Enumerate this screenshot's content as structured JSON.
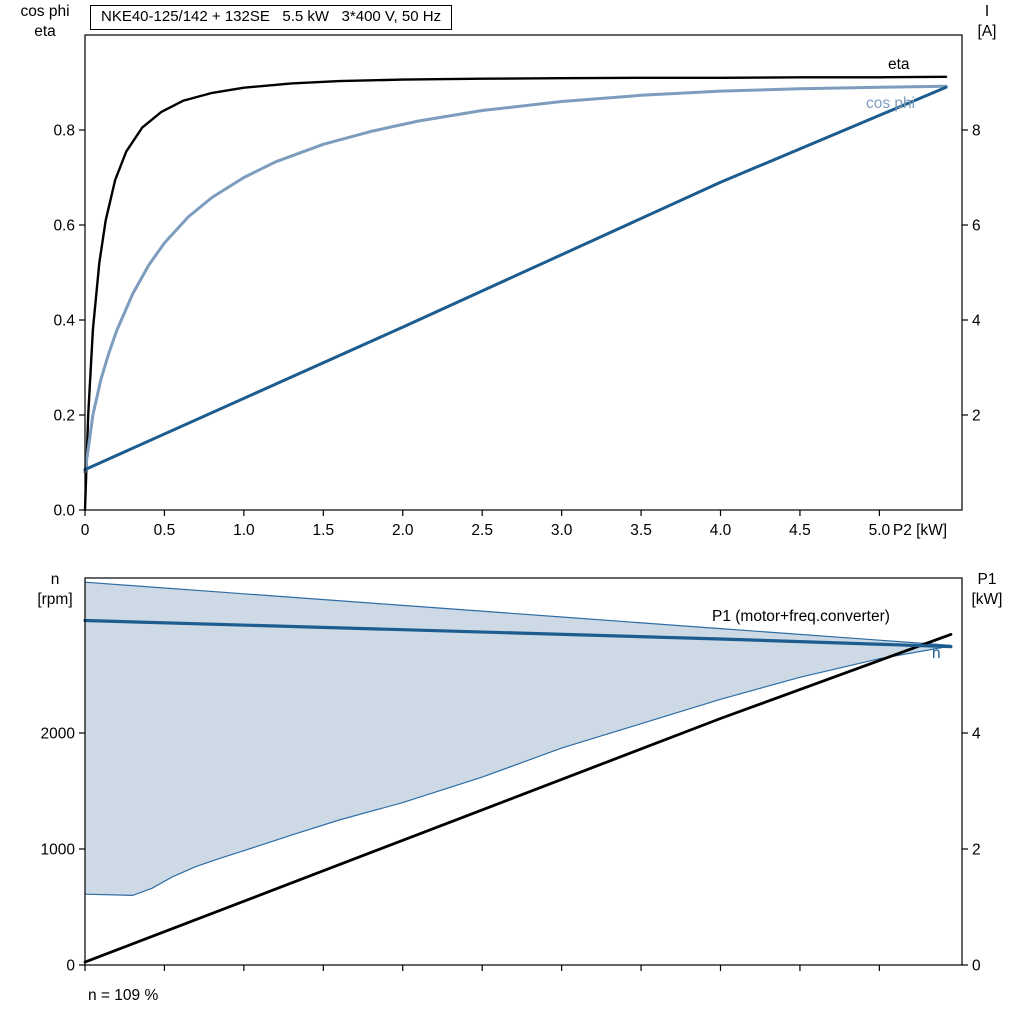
{
  "chart_data": [
    {
      "id": "motor-electrical-curves",
      "type": "line",
      "title": "NKE40-125/142 + 132SE   5.5 kW   3*400 V, 50 Hz",
      "x_axis": {
        "label": "P2 [kW]",
        "min": 0,
        "max": 5.52,
        "ticks": [
          0,
          0.5,
          1,
          1.5,
          2,
          2.5,
          3,
          3.5,
          4,
          4.5,
          5
        ],
        "tick_labels": [
          "0",
          "0.5",
          "1.0",
          "1.5",
          "2.0",
          "2.5",
          "3.0",
          "3.5",
          "4.0",
          "4.5",
          "5.0"
        ]
      },
      "y_left": {
        "label_lines": [
          "cos phi",
          "eta"
        ],
        "min": 0,
        "max": 1.0,
        "ticks": [
          0,
          0.2,
          0.4,
          0.6,
          0.8
        ],
        "tick_labels": [
          "0.0",
          "0.2",
          "0.4",
          "0.6",
          "0.8"
        ]
      },
      "y_right": {
        "label_lines": [
          "I",
          "[A]"
        ],
        "min": 0,
        "max": 10,
        "ticks": [
          2,
          4,
          6,
          8
        ],
        "tick_labels": [
          "2",
          "4",
          "6",
          "8"
        ]
      },
      "grid": false,
      "legend_position": "labels-at-line-ends",
      "series": [
        {
          "name": "eta",
          "label": "eta",
          "axis": "left",
          "color": "#000000",
          "width": 2.4,
          "points": [
            [
              0,
              0
            ],
            [
              0.02,
              0.2
            ],
            [
              0.05,
              0.38
            ],
            [
              0.09,
              0.52
            ],
            [
              0.13,
              0.61
            ],
            [
              0.19,
              0.695
            ],
            [
              0.26,
              0.755
            ],
            [
              0.36,
              0.805
            ],
            [
              0.48,
              0.838
            ],
            [
              0.62,
              0.862
            ],
            [
              0.8,
              0.878
            ],
            [
              1.0,
              0.889
            ],
            [
              1.3,
              0.898
            ],
            [
              1.6,
              0.903
            ],
            [
              2.0,
              0.906
            ],
            [
              2.5,
              0.908
            ],
            [
              3.0,
              0.909
            ],
            [
              3.5,
              0.91
            ],
            [
              4.0,
              0.91
            ],
            [
              4.5,
              0.911
            ],
            [
              5.0,
              0.911
            ],
            [
              5.42,
              0.912
            ]
          ]
        },
        {
          "name": "cos phi",
          "label": "cos phi",
          "axis": "left",
          "color": "#7d9dbe",
          "width": 3,
          "points": [
            [
              0,
              0.08
            ],
            [
              0.05,
              0.2
            ],
            [
              0.1,
              0.275
            ],
            [
              0.15,
              0.33
            ],
            [
              0.2,
              0.378
            ],
            [
              0.3,
              0.455
            ],
            [
              0.4,
              0.515
            ],
            [
              0.5,
              0.562
            ],
            [
              0.65,
              0.617
            ],
            [
              0.8,
              0.658
            ],
            [
              1.0,
              0.7
            ],
            [
              1.2,
              0.733
            ],
            [
              1.5,
              0.77
            ],
            [
              1.8,
              0.797
            ],
            [
              2.1,
              0.819
            ],
            [
              2.5,
              0.841
            ],
            [
              3.0,
              0.86
            ],
            [
              3.5,
              0.873
            ],
            [
              4.0,
              0.882
            ],
            [
              4.5,
              0.887
            ],
            [
              5.0,
              0.89
            ],
            [
              5.42,
              0.892
            ]
          ]
        },
        {
          "name": "I",
          "label": "",
          "axis": "right",
          "color": "#1c5c8e",
          "width": 3,
          "points": [
            [
              0,
              0.85
            ],
            [
              2.0,
              3.85
            ],
            [
              4.0,
              6.9
            ],
            [
              5.42,
              8.9
            ]
          ]
        }
      ]
    },
    {
      "id": "speed-and-input-power",
      "type": "line",
      "title": "",
      "x_axis": {
        "label": "",
        "min": 0,
        "max": 5.52,
        "ticks": [
          0,
          0.5,
          1,
          1.5,
          2,
          2.5,
          3,
          3.5,
          4,
          4.5,
          5
        ],
        "tick_labels": []
      },
      "y_left": {
        "label_lines": [
          "n",
          "[rpm]"
        ],
        "min": 0,
        "max": 3336,
        "ticks": [
          0,
          1000,
          2000
        ],
        "tick_labels": [
          "0",
          "1000",
          "2000"
        ]
      },
      "y_right": {
        "label_lines": [
          "P1",
          "[kW]"
        ],
        "min": 0,
        "max": 6.672,
        "ticks": [
          0,
          2,
          4
        ],
        "tick_labels": [
          "0",
          "2",
          "4"
        ]
      },
      "grid": false,
      "band": {
        "name": "speed-operating-range",
        "fill": "#cdd9e5",
        "stroke": "#2e6da4",
        "stroke_width": 1.2,
        "upper": [
          [
            0,
            3300
          ],
          [
            1,
            3200
          ],
          [
            2,
            3100
          ],
          [
            3,
            3000
          ],
          [
            4,
            2900
          ],
          [
            5,
            2800
          ],
          [
            5.45,
            2755
          ]
        ],
        "lower": [
          [
            0,
            610
          ],
          [
            0.3,
            600
          ],
          [
            0.42,
            660
          ],
          [
            0.55,
            760
          ],
          [
            0.7,
            850
          ],
          [
            0.85,
            920
          ],
          [
            1.0,
            985
          ],
          [
            1.3,
            1120
          ],
          [
            1.6,
            1250
          ],
          [
            2.0,
            1400
          ],
          [
            2.5,
            1620
          ],
          [
            3.0,
            1870
          ],
          [
            3.5,
            2080
          ],
          [
            4.0,
            2290
          ],
          [
            4.5,
            2480
          ],
          [
            5.0,
            2640
          ],
          [
            5.45,
            2750
          ]
        ]
      },
      "series": [
        {
          "name": "P1",
          "label": "P1 (motor+freq.converter)",
          "axis": "right",
          "color": "#000000",
          "width": 2.8,
          "points": [
            [
              0,
              0.05
            ],
            [
              2.0,
              2.15
            ],
            [
              4.0,
              4.25
            ],
            [
              5.45,
              5.7
            ]
          ]
        },
        {
          "name": "n",
          "label": "n",
          "axis": "left",
          "color": "#1c5c8e",
          "width": 3.2,
          "points": [
            [
              0,
              2970
            ],
            [
              2,
              2890
            ],
            [
              4,
              2810
            ],
            [
              5.45,
              2745
            ]
          ]
        }
      ],
      "footer": "n = 109 %"
    }
  ]
}
